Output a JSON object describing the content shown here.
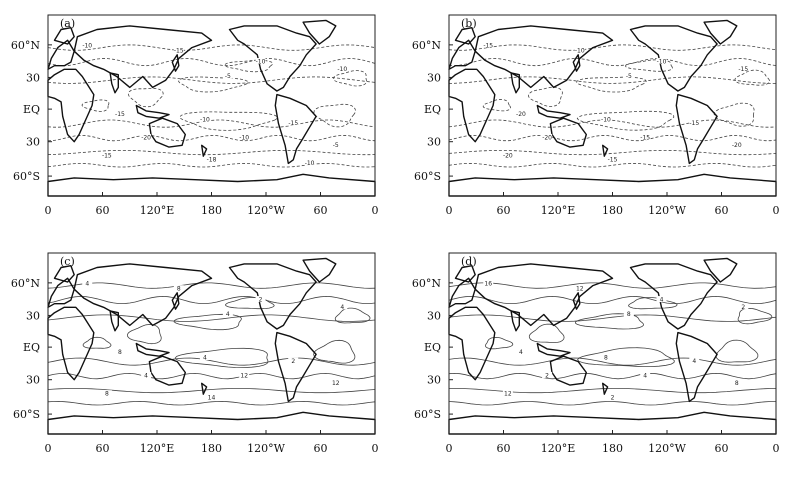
{
  "panels": [
    {
      "id": "a",
      "label": "(a)",
      "line_style": "dashed",
      "contour_labels": [
        "-10",
        "-15",
        "-5",
        "-10",
        "-10",
        "-15",
        "-10",
        "-15",
        "-20",
        "-10",
        "-5",
        "-15",
        "-18",
        "-10"
      ]
    },
    {
      "id": "b",
      "label": "(b)",
      "line_style": "dashed",
      "contour_labels": [
        "-15",
        "-10",
        "-5",
        "-10",
        "-15",
        "-20",
        "-10",
        "-15",
        "-20",
        "-15",
        "-20",
        "-20",
        "-15"
      ]
    },
    {
      "id": "c",
      "label": "(c)",
      "line_style": "solid",
      "contour_labels": [
        "4",
        "8",
        "4",
        "2",
        "4",
        "8",
        "4",
        "2",
        "4",
        "12",
        "12",
        "8",
        "14"
      ]
    },
    {
      "id": "d",
      "label": "(d)",
      "line_style": "solid",
      "contour_labels": [
        "16",
        "12",
        "8",
        "4",
        "2",
        "4",
        "8",
        "4",
        "2",
        "4",
        "8",
        "12",
        "2"
      ]
    }
  ],
  "y_ticks": [
    "60°N",
    "30",
    "EQ",
    "30",
    "60°S"
  ],
  "x_ticks": [
    "0",
    "60",
    "120°E",
    "180",
    "120°W",
    "60",
    "0"
  ],
  "colors": {
    "line": "#222222",
    "background": "#ffffff"
  }
}
